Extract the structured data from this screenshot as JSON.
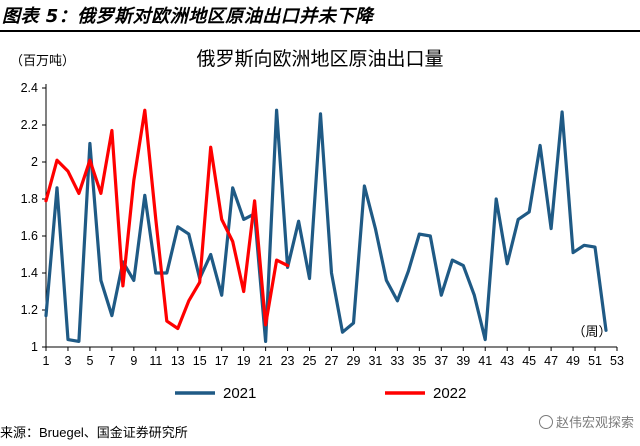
{
  "figure": {
    "title": "图表 5：俄罗斯对欧洲地区原油出口并未下降",
    "source": "来源：Bruegel、国金证券研究所",
    "watermark": "赵伟宏观探索"
  },
  "colors": {
    "series_2021": "#1F5A85",
    "series_2022": "#FF0000",
    "axis": "#000000"
  },
  "chart_data": {
    "type": "line",
    "title": "俄罗斯向欧洲地区原油出口量",
    "ylabel": "（百万吨）",
    "xlabel_note": "（周）",
    "xlim": [
      1,
      53
    ],
    "ylim": [
      1,
      2.4
    ],
    "x_ticks": [
      1,
      3,
      5,
      7,
      9,
      11,
      13,
      15,
      17,
      19,
      21,
      23,
      25,
      27,
      29,
      31,
      33,
      35,
      37,
      39,
      41,
      43,
      45,
      47,
      49,
      51,
      53
    ],
    "y_ticks": [
      1,
      1.2,
      1.4,
      1.6,
      1.8,
      2,
      2.2,
      2.4
    ],
    "y_tick_labels": [
      "1",
      "1.2",
      "1.4",
      "1.6",
      "1.8",
      "2",
      "2.2",
      "2.4"
    ],
    "grid": false,
    "legend_position": "bottom",
    "series": [
      {
        "name": "2021",
        "x": [
          1,
          2,
          3,
          4,
          5,
          6,
          7,
          8,
          9,
          10,
          11,
          12,
          13,
          14,
          15,
          16,
          17,
          18,
          19,
          20,
          21,
          22,
          23,
          24,
          25,
          26,
          27,
          28,
          29,
          30,
          31,
          32,
          33,
          34,
          35,
          36,
          37,
          38,
          39,
          40,
          41,
          42,
          43,
          44,
          45,
          46,
          47,
          48,
          49,
          50,
          51,
          52
        ],
        "values": [
          1.17,
          1.86,
          1.04,
          1.03,
          2.1,
          1.36,
          1.17,
          1.46,
          1.36,
          1.82,
          1.4,
          1.4,
          1.65,
          1.61,
          1.37,
          1.5,
          1.28,
          1.86,
          1.69,
          1.72,
          1.03,
          2.28,
          1.43,
          1.68,
          1.37,
          2.26,
          1.4,
          1.08,
          1.13,
          1.87,
          1.64,
          1.36,
          1.25,
          1.41,
          1.61,
          1.6,
          1.28,
          1.47,
          1.44,
          1.28,
          1.04,
          1.8,
          1.45,
          1.69,
          1.73,
          2.09,
          1.64,
          2.27,
          1.51,
          1.55,
          1.54,
          1.09
        ]
      },
      {
        "name": "2022",
        "x": [
          1,
          2,
          3,
          4,
          5,
          6,
          7,
          8,
          9,
          10,
          11,
          12,
          13,
          14,
          15,
          16,
          17,
          18,
          19,
          20,
          21,
          22,
          23
        ],
        "values": [
          1.79,
          2.01,
          1.95,
          1.83,
          2.01,
          1.83,
          2.17,
          1.33,
          1.9,
          2.28,
          1.69,
          1.14,
          1.1,
          1.25,
          1.35,
          2.08,
          1.69,
          1.57,
          1.3,
          1.79,
          1.12,
          1.47,
          1.44
        ]
      }
    ]
  }
}
